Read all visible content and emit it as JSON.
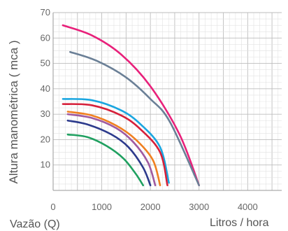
{
  "chart_data": {
    "type": "line",
    "title": "",
    "xlabel": "Vazão (Q)",
    "xlabel_right": "Litros / hora",
    "ylabel": "Altura manométrica ( mca )",
    "xlim": [
      0,
      4700
    ],
    "ylim": [
      0,
      70
    ],
    "x_ticks": [
      0,
      1000,
      2000,
      3000,
      4000
    ],
    "x_tick_labels": [
      "0",
      "1000",
      "2000",
      "3000",
      "4000"
    ],
    "y_ticks": [
      10,
      20,
      30,
      40,
      50,
      60,
      70
    ],
    "y_tick_labels": [
      "10",
      "20",
      "30",
      "40",
      "50",
      "60",
      "70"
    ],
    "grid": true,
    "legend": "none",
    "series": [
      {
        "color": "#e8207a",
        "x": [
          200,
          800,
          1400,
          2000,
          2600,
          3000
        ],
        "y": [
          65,
          61,
          53.5,
          41,
          22,
          2
        ]
      },
      {
        "color": "#6a7f96",
        "x": [
          350,
          900,
          1500,
          2000,
          2400,
          3000
        ],
        "y": [
          54.5,
          51,
          44.5,
          36,
          27,
          2
        ]
      },
      {
        "color": "#1aa6e0",
        "x": [
          200,
          800,
          1400,
          1800,
          2200,
          2380
        ],
        "y": [
          36,
          35.5,
          31.5,
          26,
          17,
          3
        ]
      },
      {
        "color": "#d6203a",
        "x": [
          200,
          800,
          1400,
          1800,
          2200,
          2350
        ],
        "y": [
          34,
          33.5,
          29.5,
          24,
          15,
          2
        ]
      },
      {
        "color": "#f08020",
        "x": [
          300,
          800,
          1300,
          1700,
          2050,
          2200
        ],
        "y": [
          31,
          29.5,
          25.5,
          20,
          12,
          2
        ]
      },
      {
        "color": "#a05aa0",
        "x": [
          300,
          800,
          1300,
          1650,
          1950,
          2100
        ],
        "y": [
          30,
          28.5,
          24.5,
          19,
          11,
          2
        ]
      },
      {
        "color": "#2c3a8c",
        "x": [
          300,
          700,
          1200,
          1550,
          1850,
          2000
        ],
        "y": [
          27.5,
          26,
          22,
          17,
          9,
          2
        ]
      },
      {
        "color": "#1fa060",
        "x": [
          300,
          700,
          1100,
          1450,
          1700,
          1850
        ],
        "y": [
          22,
          21,
          17.5,
          12.5,
          6.5,
          2
        ]
      }
    ]
  }
}
